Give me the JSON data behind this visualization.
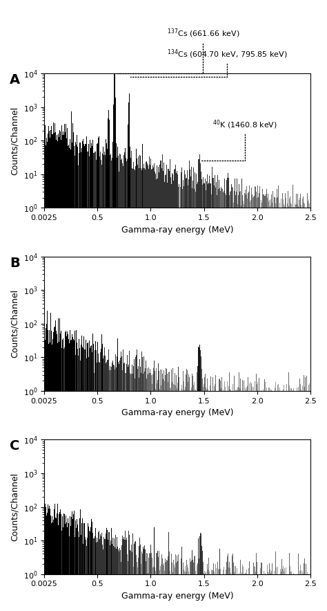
{
  "panels": [
    "A",
    "B",
    "C"
  ],
  "xlabel": "Gamma-ray energy (MeV)",
  "ylabel": "Counts/Channel",
  "xlim": [
    0.0025,
    2.5
  ],
  "ylim": [
    1,
    10000.0
  ],
  "xticks": [
    0.0025,
    0.5,
    1.0,
    1.5,
    2.0,
    2.5
  ],
  "xticklabels": [
    "0.0025",
    "0.5",
    "1.0",
    "1.5",
    "2.0",
    "2.5"
  ],
  "panel_A": {
    "cs137_peak": 0.66166,
    "cs134_peak1": 0.6047,
    "cs134_peak2": 0.79585,
    "k40_peak": 1.4608,
    "cs137_height": 9000,
    "cs134_height1": 600,
    "cs134_height2": 1000,
    "k40_height": 25,
    "base_amplitude": 200,
    "decay_rate": 2.5,
    "noise_seed": 42,
    "noise_sigma": 0.5
  },
  "panel_B": {
    "k40_peak": 1.4608,
    "k40_height": 20,
    "base_amplitude": 90,
    "decay_rate": 3.5,
    "noise_seed": 7,
    "noise_sigma": 0.55
  },
  "panel_C": {
    "k40_peak": 1.4608,
    "k40_height": 18,
    "base_amplitude": 80,
    "decay_rate": 3.5,
    "noise_seed": 99,
    "noise_sigma": 0.55
  },
  "background_color": "#ffffff",
  "bar_color": "#000000",
  "figsize": [
    4.74,
    8.83
  ],
  "dpi": 100,
  "ann_A": {
    "cs137_label": "$^{137}$Cs (661.66 keV)",
    "cs134_label": "$^{134}$Cs (604.70 keV, 795.85 keV)",
    "k40_label": "$^{40}$K (1460.8 keV)"
  }
}
